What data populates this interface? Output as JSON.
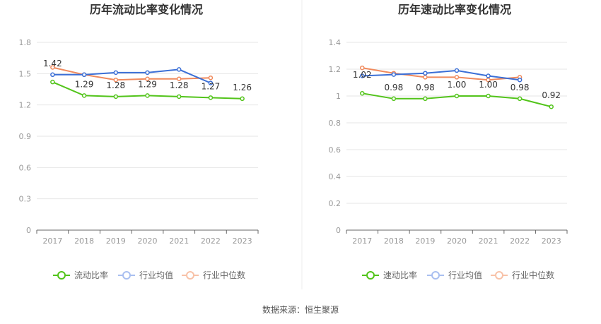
{
  "source_label": "数据来源：恒生聚源",
  "colors": {
    "main": "#52c41a",
    "industry_avg": "#3b6fd6",
    "industry_median": "#f08a5d",
    "legend_avg": "#a9bff0",
    "legend_median": "#f8c2a8",
    "grid": "#e6e6e6",
    "axis": "#666666",
    "tick": "#999999",
    "title": "#333333",
    "label": "#333333"
  },
  "chart_data": [
    {
      "type": "line",
      "title": "历年流动比率变化情况",
      "categories": [
        "2017",
        "2018",
        "2019",
        "2020",
        "2021",
        "2022",
        "2023"
      ],
      "ylim": [
        0,
        1.8
      ],
      "yticks": [
        "0",
        "0.3",
        "0.6",
        "0.9",
        "1.2",
        "1.5",
        "1.8"
      ],
      "ytick_values": [
        0,
        0.3,
        0.6,
        0.9,
        1.2,
        1.5,
        1.8
      ],
      "grid": true,
      "legend_position": "bottom-center",
      "series": [
        {
          "name": "流动比率",
          "key": "main",
          "values": [
            1.42,
            1.29,
            1.28,
            1.29,
            1.28,
            1.27,
            1.26
          ],
          "labels": [
            "1.42",
            "1.29",
            "1.28",
            "1.29",
            "1.28",
            "1.27",
            "1.26"
          ]
        },
        {
          "name": "行业均值",
          "key": "industry_avg",
          "values": [
            1.49,
            1.49,
            1.51,
            1.51,
            1.54,
            1.41,
            null
          ]
        },
        {
          "name": "行业中位数",
          "key": "industry_median",
          "values": [
            1.56,
            1.49,
            1.44,
            1.45,
            1.45,
            1.46,
            null
          ]
        }
      ]
    },
    {
      "type": "line",
      "title": "历年速动比率变化情况",
      "categories": [
        "2017",
        "2018",
        "2019",
        "2020",
        "2021",
        "2022",
        "2023"
      ],
      "ylim": [
        0,
        1.4
      ],
      "yticks": [
        "0",
        "0.2",
        "0.4",
        "0.6",
        "0.8",
        "1",
        "1.2",
        "1.4"
      ],
      "ytick_values": [
        0,
        0.2,
        0.4,
        0.6,
        0.8,
        1.0,
        1.2,
        1.4
      ],
      "grid": true,
      "legend_position": "bottom-center",
      "series": [
        {
          "name": "速动比率",
          "key": "main",
          "values": [
            1.02,
            0.98,
            0.98,
            1.0,
            1.0,
            0.98,
            0.92
          ],
          "labels": [
            "1.02",
            "0.98",
            "0.98",
            "1.00",
            "1.00",
            "0.98",
            "0.92"
          ]
        },
        {
          "name": "行业均值",
          "key": "industry_avg",
          "values": [
            1.15,
            1.16,
            1.17,
            1.19,
            1.15,
            1.12,
            null
          ]
        },
        {
          "name": "行业中位数",
          "key": "industry_median",
          "values": [
            1.21,
            1.17,
            1.14,
            1.14,
            1.12,
            1.14,
            null
          ]
        }
      ]
    }
  ]
}
